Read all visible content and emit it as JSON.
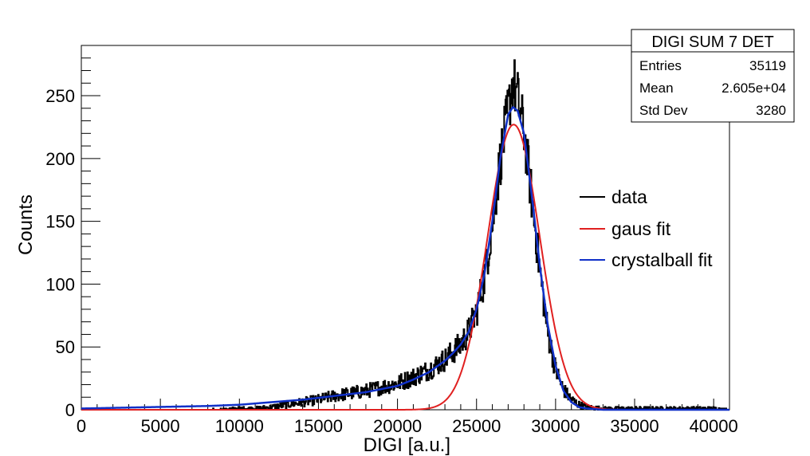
{
  "chart_data": {
    "type": "line",
    "xlabel": "DIGI [a.u.]",
    "ylabel": "Counts",
    "xlim": [
      0,
      41000
    ],
    "ylim": [
      0,
      290
    ],
    "x_ticks": [
      0,
      5000,
      10000,
      15000,
      20000,
      25000,
      30000,
      35000,
      40000
    ],
    "y_ticks": [
      0,
      50,
      100,
      150,
      200,
      250
    ],
    "legend_position": "right",
    "stats_box": {
      "title": "DIGI SUM 7 DET",
      "rows": [
        {
          "label": "Entries",
          "value": "35119"
        },
        {
          "label": "Mean",
          "value": "2.605e+04"
        },
        {
          "label": "Std Dev",
          "value": "3280"
        }
      ]
    },
    "series": [
      {
        "name": "data",
        "color": "#000000",
        "style": "histogram",
        "x": [
          0,
          2000,
          4000,
          6000,
          8000,
          10000,
          11000,
          12000,
          13000,
          14000,
          15000,
          16000,
          17000,
          18000,
          19000,
          20000,
          21000,
          22000,
          23000,
          23500,
          24000,
          24500,
          25000,
          25500,
          26000,
          26500,
          27000,
          27300,
          27600,
          28000,
          28500,
          29000,
          29500,
          30000,
          30500,
          31000,
          31500,
          32000,
          33000,
          34000,
          35000,
          36000,
          38000,
          40000,
          41000
        ],
        "values": [
          0,
          0,
          0,
          0,
          0,
          1,
          1,
          2,
          4,
          6,
          8,
          11,
          13,
          15,
          18,
          21,
          26,
          32,
          40,
          46,
          52,
          62,
          78,
          105,
          148,
          198,
          238,
          262,
          248,
          222,
          168,
          112,
          62,
          32,
          16,
          8,
          4,
          2,
          1,
          1,
          1,
          1,
          1,
          1,
          0
        ]
      },
      {
        "name": "gaus fit",
        "color": "#e02020",
        "style": "gaussian",
        "amplitude": 227,
        "mean": 27350,
        "sigma": 1650
      },
      {
        "name": "crystalball fit",
        "color": "#1030c8",
        "style": "crystalball",
        "x": [
          0,
          4000,
          8000,
          10000,
          12000,
          14000,
          16000,
          18000,
          20000,
          21000,
          22000,
          23000,
          23500,
          24000,
          24500,
          25000,
          25500,
          26000,
          26500,
          27000,
          27300,
          27600,
          28000,
          28500,
          29000,
          29500,
          30000,
          30500,
          31000,
          31500,
          32000,
          33000,
          35000,
          41000
        ],
        "values": [
          1,
          2,
          3,
          4,
          6,
          8,
          11,
          14,
          19,
          24,
          30,
          39,
          45,
          52,
          62,
          80,
          108,
          150,
          200,
          235,
          241,
          238,
          220,
          170,
          115,
          68,
          35,
          15,
          6,
          2,
          1,
          0,
          0,
          0
        ]
      }
    ]
  }
}
